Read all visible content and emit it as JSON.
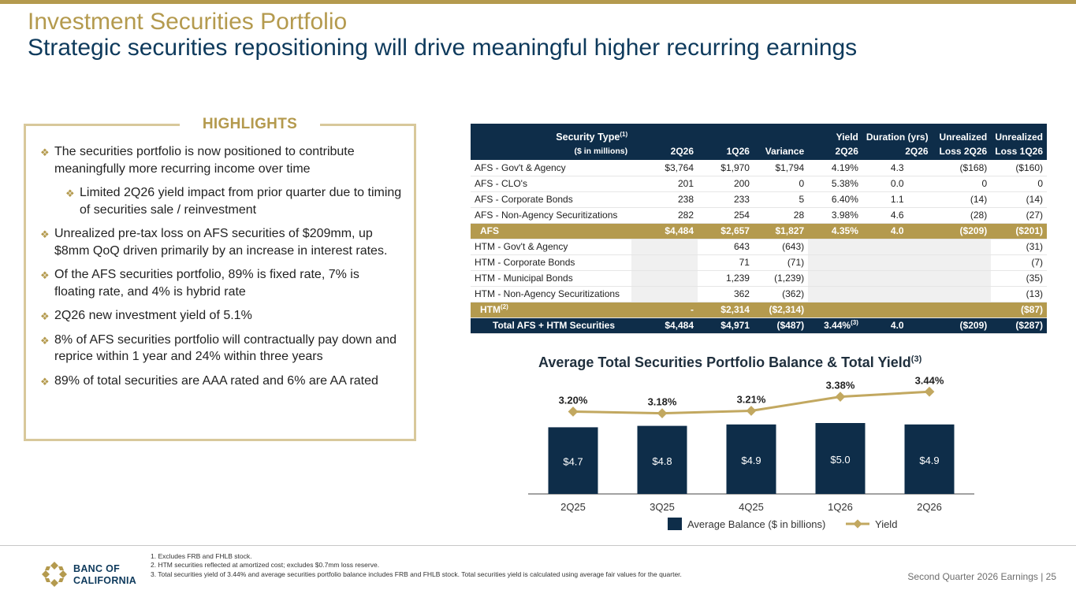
{
  "header": {
    "title": "Investment Securities Portfolio",
    "subtitle": "Strategic securities repositioning will drive meaningful higher recurring earnings"
  },
  "highlights": {
    "title": "HIGHLIGHTS",
    "items": [
      "The securities portfolio is now positioned to contribute meaningfully more recurring income over time",
      "Limited 2Q26 yield impact from prior quarter due to timing of securities sale / reinvestment",
      "Unrealized pre-tax loss on AFS securities of $209mm, up $8mm QoQ driven primarily by an increase in interest rates.",
      "Of the AFS securities portfolio, 89% is fixed rate, 7% is floating rate, and 4% is hybrid rate",
      "2Q26 new investment yield of 5.1%",
      "8% of AFS securities portfolio will contractually pay down and reprice within 1 year and 24% within three years",
      "89% of total securities are AAA rated and 6% are AA rated"
    ]
  },
  "table": {
    "header_row1": {
      "type_label": "Security Type",
      "type_note": "(1)",
      "yield": "Yield",
      "duration": "Duration (yrs)",
      "unrealized_a": "Unrealized",
      "unrealized_b": "Unrealized"
    },
    "header_row2": {
      "units": "($ in millions)",
      "c2q26": "2Q26",
      "c1q26": "1Q26",
      "variance": "Variance",
      "yield_q": "2Q26",
      "dur_q": "2Q26",
      "loss_2q26": "Loss 2Q26",
      "loss_1q26": "Loss 1Q26"
    },
    "rows": [
      [
        "AFS - Gov't & Agency",
        "$3,764",
        "$1,970",
        "$1,794",
        "4.19%",
        "4.3",
        "($168)",
        "($160)"
      ],
      [
        "AFS - CLO's",
        "201",
        "200",
        "0",
        "5.38%",
        "0.0",
        "0",
        "0"
      ],
      [
        "AFS - Corporate Bonds",
        "238",
        "233",
        "5",
        "6.40%",
        "1.1",
        "(14)",
        "(14)"
      ],
      [
        "AFS - Non-Agency Securitizations",
        "282",
        "254",
        "28",
        "3.98%",
        "4.6",
        "(28)",
        "(27)"
      ],
      [
        "AFS",
        "$4,484",
        "$2,657",
        "$1,827",
        "4.35%",
        "4.0",
        "($209)",
        "($201)"
      ],
      [
        "HTM - Gov't & Agency",
        "",
        "643",
        "(643)",
        "",
        "",
        "",
        "(31)"
      ],
      [
        "HTM - Corporate Bonds",
        "",
        "71",
        "(71)",
        "",
        "",
        "",
        "(7)"
      ],
      [
        "HTM - Municipal Bonds",
        "",
        "1,239",
        "(1,239)",
        "",
        "",
        "",
        "(35)"
      ],
      [
        "HTM - Non-Agency Securitizations",
        "",
        "362",
        "(362)",
        "",
        "",
        "",
        "(13)"
      ],
      [
        "HTM",
        "-",
        "$2,314",
        "($2,314)",
        "",
        "",
        "",
        "($87)"
      ],
      [
        "Total AFS + HTM Securities",
        "$4,484",
        "$4,971",
        "($487)",
        "3.44%",
        "4.0",
        "($209)",
        "($287)"
      ]
    ],
    "htm_note": "(2)",
    "total_yield_note": "(3)"
  },
  "chart_title": "Average Total Securities Portfolio Balance & Total Yield",
  "chart_title_note": "(3)",
  "chart_data": {
    "type": "bar",
    "categories": [
      "2Q25",
      "3Q25",
      "4Q25",
      "1Q26",
      "2Q26"
    ],
    "series": [
      {
        "name": "Average Balance ($ in billions)",
        "type": "bar",
        "values": [
          4.7,
          4.8,
          4.9,
          5.0,
          4.9
        ],
        "labels": [
          "$4.7",
          "$4.8",
          "$4.9",
          "$5.0",
          "$4.9"
        ],
        "color": "#0E2D49"
      },
      {
        "name": "Yield",
        "type": "line",
        "values": [
          3.2,
          3.18,
          3.21,
          3.38,
          3.44
        ],
        "labels": [
          "3.20%",
          "3.18%",
          "3.21%",
          "3.38%",
          "3.44%"
        ],
        "color": "#C2A860"
      }
    ],
    "legend_position": "bottom"
  },
  "footnotes": [
    "1.  Excludes FRB and FHLB stock.",
    "2.  HTM securities reflected at amortized cost; excludes $0.7mm loss reserve.",
    "3.  Total securities yield of 3.44% and average securities portfolio balance includes FRB and FHLB stock. Total securities yield is calculated using average fair values for the quarter."
  ],
  "logo": {
    "line1": "BANC OF",
    "line2": "CALIFORNIA"
  },
  "page_footer": "Second Quarter 2026 Earnings |  25"
}
